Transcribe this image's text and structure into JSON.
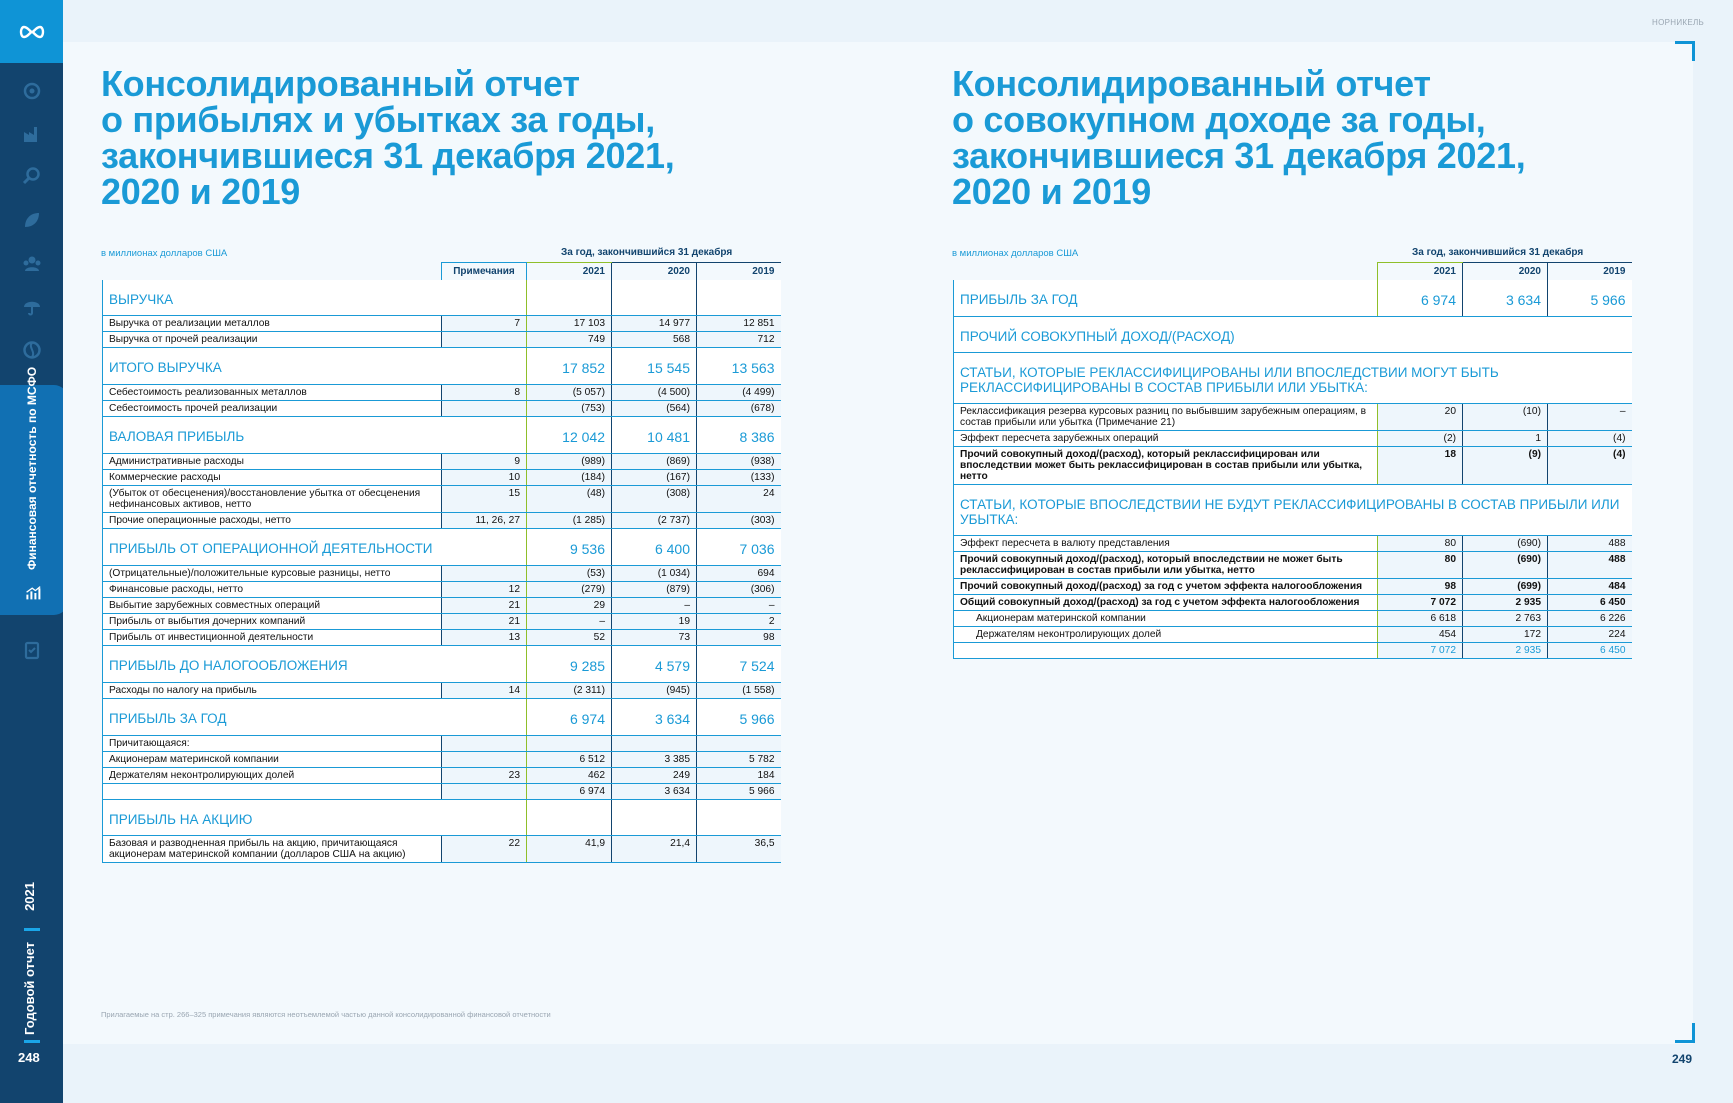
{
  "sidebar": {
    "section_label": "Финансовая отчетность по МСФО",
    "year": "2021",
    "report": "Годовой отчет",
    "page_number": "248"
  },
  "brand": "НОРНИКЕЛЬ",
  "right_page_number": "249",
  "footnote": "Прилагаемые на стр. 266–325 примечания являются неотъемлемой частью данной консолидированной финансовой отчетности",
  "left": {
    "title_lines": [
      "Консолидированный отчет",
      "о прибылях и убытках за годы,",
      "закончившиеся 31 декабря 2021,",
      "2020 и 2019"
    ],
    "units": "в миллионах долларов США",
    "period": "За год, закончившийся 31 декабря",
    "headers": {
      "notes": "Примечания",
      "y1": "2021",
      "y2": "2020",
      "y3": "2019"
    },
    "rows": [
      {
        "type": "sec",
        "label": "ВЫРУЧКА",
        "note": "",
        "v": [
          "",
          "",
          ""
        ]
      },
      {
        "type": "row",
        "label": "Выручка от реализации металлов",
        "note": "7",
        "v": [
          "17 103",
          "14 977",
          "12 851"
        ]
      },
      {
        "type": "row",
        "label": "Выручка от прочей реализации",
        "note": "",
        "v": [
          "749",
          "568",
          "712"
        ]
      },
      {
        "type": "sec",
        "label": "ИТОГО ВЫРУЧКА",
        "note": "",
        "v": [
          "17 852",
          "15 545",
          "13 563"
        ]
      },
      {
        "type": "row",
        "label": "Себестоимость реализованных металлов",
        "note": "8",
        "v": [
          "(5 057)",
          "(4 500)",
          "(4 499)"
        ]
      },
      {
        "type": "row",
        "label": "Себестоимость прочей реализации",
        "note": "",
        "v": [
          "(753)",
          "(564)",
          "(678)"
        ]
      },
      {
        "type": "sec",
        "label": "ВАЛОВАЯ ПРИБЫЛЬ",
        "note": "",
        "v": [
          "12 042",
          "10 481",
          "8 386"
        ]
      },
      {
        "type": "row",
        "label": "Административные расходы",
        "note": "9",
        "v": [
          "(989)",
          "(869)",
          "(938)"
        ]
      },
      {
        "type": "row",
        "label": "Коммерческие расходы",
        "note": "10",
        "v": [
          "(184)",
          "(167)",
          "(133)"
        ]
      },
      {
        "type": "row",
        "label": "(Убыток от обесценения)/восстановление убытка от обесценения нефинансовых активов, нетто",
        "note": "15",
        "v": [
          "(48)",
          "(308)",
          "24"
        ]
      },
      {
        "type": "row",
        "label": "Прочие операционные расходы, нетто",
        "note": "11, 26, 27",
        "v": [
          "(1 285)",
          "(2 737)",
          "(303)"
        ]
      },
      {
        "type": "sec",
        "label": "ПРИБЫЛЬ ОТ ОПЕРАЦИОННОЙ ДЕЯТЕЛЬНОСТИ",
        "note": "",
        "v": [
          "9 536",
          "6 400",
          "7 036"
        ]
      },
      {
        "type": "row",
        "label": "(Отрицательные)/положительные курсовые разницы, нетто",
        "note": "",
        "v": [
          "(53)",
          "(1 034)",
          "694"
        ]
      },
      {
        "type": "row",
        "label": "Финансовые расходы, нетто",
        "note": "12",
        "v": [
          "(279)",
          "(879)",
          "(306)"
        ]
      },
      {
        "type": "row",
        "label": "Выбытие зарубежных совместных операций",
        "note": "21",
        "v": [
          "29",
          "–",
          "–"
        ]
      },
      {
        "type": "row",
        "label": "Прибыль от выбытия дочерних компаний",
        "note": "21",
        "v": [
          "–",
          "19",
          "2"
        ]
      },
      {
        "type": "row",
        "label": "Прибыль от инвестиционной деятельности",
        "note": "13",
        "v": [
          "52",
          "73",
          "98"
        ]
      },
      {
        "type": "sec",
        "label": "ПРИБЫЛЬ ДО НАЛОГООБЛОЖЕНИЯ",
        "note": "",
        "v": [
          "9 285",
          "4 579",
          "7 524"
        ]
      },
      {
        "type": "row",
        "label": "Расходы по налогу на прибыль",
        "note": "14",
        "v": [
          "(2 311)",
          "(945)",
          "(1 558)"
        ]
      },
      {
        "type": "sec",
        "label": "ПРИБЫЛЬ ЗА ГОД",
        "note": "",
        "v": [
          "6 974",
          "3 634",
          "5 966"
        ]
      },
      {
        "type": "row",
        "label": "Причитающаяся:",
        "note": "",
        "v": [
          "",
          "",
          ""
        ]
      },
      {
        "type": "row",
        "label": "Акционерам материнской компании",
        "note": "",
        "v": [
          "6 512",
          "3 385",
          "5 782"
        ]
      },
      {
        "type": "row",
        "label": "Держателям неконтролирующих долей",
        "note": "23",
        "v": [
          "462",
          "249",
          "184"
        ]
      },
      {
        "type": "row",
        "label": "",
        "note": "",
        "v": [
          "6 974",
          "3 634",
          "5 966"
        ]
      },
      {
        "type": "sec",
        "label": "ПРИБЫЛЬ НА АКЦИЮ",
        "note": "",
        "v": [
          "",
          "",
          ""
        ]
      },
      {
        "type": "row",
        "label": "Базовая и разводненная прибыль на акцию, причитающаяся акционерам материнской компании (долларов США на акцию)",
        "note": "22",
        "v": [
          "41,9",
          "21,4",
          "36,5"
        ]
      }
    ]
  },
  "right": {
    "title_lines": [
      "Консолидированный отчет",
      "о совокупном доходе за годы,",
      "закончившиеся 31 декабря 2021,",
      "2020 и 2019"
    ],
    "units": "в миллионах долларов США",
    "period": "За год, закончившийся 31 декабря",
    "headers": {
      "y1": "2021",
      "y2": "2020",
      "y3": "2019"
    },
    "rows": [
      {
        "type": "sec",
        "label": "ПРИБЫЛЬ ЗА ГОД",
        "v": [
          "6 974",
          "3 634",
          "5 966"
        ]
      },
      {
        "type": "sec",
        "label": "ПРОЧИЙ СОВОКУПНЫЙ ДОХОД/(РАСХОД)",
        "v": [
          "",
          "",
          ""
        ]
      },
      {
        "type": "sec",
        "label": "СТАТЬИ, КОТОРЫЕ РЕКЛАССИФИЦИРОВАНЫ ИЛИ ВПОСЛЕДСТВИИ МОГУТ БЫТЬ РЕКЛАССИФИЦИРОВАНЫ В СОСТАВ ПРИБЫЛИ ИЛИ УБЫТКА:",
        "v": [
          "",
          "",
          ""
        ]
      },
      {
        "type": "row",
        "label": "Реклассификация резерва курсовых разниц по выбывшим зарубежным операциям, в состав прибыли или убытка (Примечание 21)",
        "v": [
          "20",
          "(10)",
          "–"
        ]
      },
      {
        "type": "row",
        "label": "Эффект пересчета зарубежных операций",
        "v": [
          "(2)",
          "1",
          "(4)"
        ]
      },
      {
        "type": "bold",
        "label": "Прочий совокупный доход/(расход), который реклассифицирован или впоследствии может быть реклассифицирован в состав прибыли или убытка, нетто",
        "v": [
          "18",
          "(9)",
          "(4)"
        ]
      },
      {
        "type": "sec",
        "label": "СТАТЬИ, КОТОРЫЕ ВПОСЛЕДСТВИИ НЕ БУДУТ РЕКЛАССИФИЦИРОВАНЫ В СОСТАВ ПРИБЫЛИ ИЛИ УБЫТКА:",
        "v": [
          "",
          "",
          ""
        ]
      },
      {
        "type": "row",
        "label": "Эффект пересчета в валюту представления",
        "v": [
          "80",
          "(690)",
          "488"
        ]
      },
      {
        "type": "bold",
        "label": "Прочий совокупный доход/(расход), который впоследствии не может быть реклассифицирован в состав прибыли или убытка, нетто",
        "v": [
          "80",
          "(690)",
          "488"
        ]
      },
      {
        "type": "bold",
        "label": "Прочий совокупный доход/(расход) за год с учетом эффекта налогообложения",
        "v": [
          "98",
          "(699)",
          "484"
        ]
      },
      {
        "type": "bold",
        "label": "Общий совокупный доход/(расход) за год с учетом эффекта налогообложения",
        "v": [
          "7 072",
          "2 935",
          "6 450"
        ]
      },
      {
        "type": "indent",
        "label": "Акционерам материнской компании",
        "v": [
          "6 618",
          "2 763",
          "6 226"
        ]
      },
      {
        "type": "indent",
        "label": "Держателям неконтролирующих долей",
        "v": [
          "454",
          "172",
          "224"
        ]
      },
      {
        "type": "total",
        "label": "",
        "v": [
          "7 072",
          "2 935",
          "6 450"
        ]
      }
    ]
  }
}
